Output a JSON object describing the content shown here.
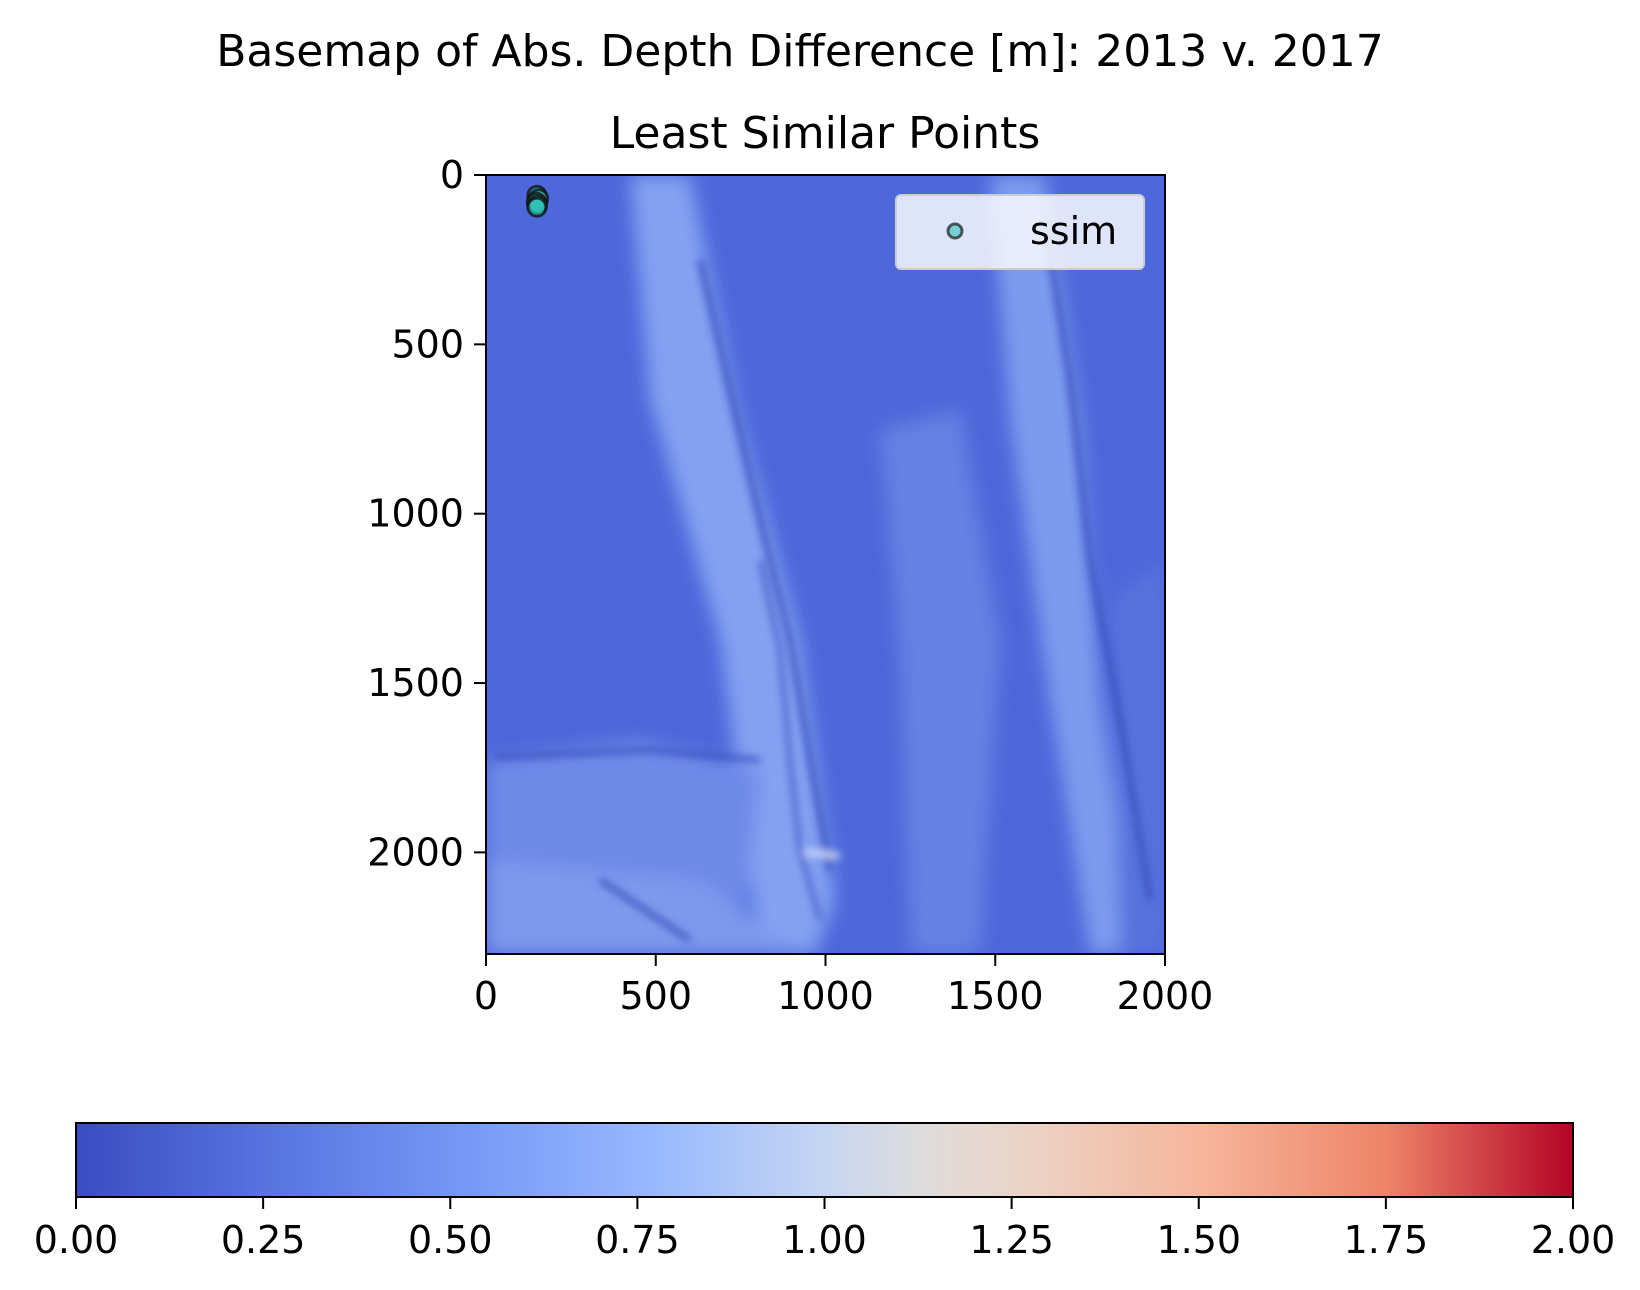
{
  "chart_data": {
    "type": "heatmap",
    "title": "Basemap of Abs. Depth Difference [m]: 2013 v. 2017",
    "subtitle": "Least Similar Points",
    "xlim": [
      0,
      2000
    ],
    "ylim": [
      2300,
      0
    ],
    "x_ticks": [
      "0",
      "500",
      "1000",
      "1500",
      "2000"
    ],
    "y_ticks": [
      "0",
      "500",
      "1000",
      "1500",
      "2000"
    ],
    "x_tick_values": [
      0,
      500,
      1000,
      1500,
      2000
    ],
    "y_tick_values": [
      0,
      500,
      1000,
      1500,
      2000
    ],
    "legend": {
      "placement": "upper right",
      "entries": [
        "ssim"
      ]
    },
    "series": [
      {
        "name": "ssim",
        "color": "#2ec4b6",
        "points": [
          {
            "x": 150,
            "y": 60
          },
          {
            "x": 155,
            "y": 70
          },
          {
            "x": 148,
            "y": 80
          },
          {
            "x": 152,
            "y": 88
          },
          {
            "x": 150,
            "y": 95
          }
        ]
      }
    ],
    "colorbar": {
      "colormap": "coolwarm",
      "range": [
        0,
        2
      ],
      "ticks": [
        "0.00",
        "0.25",
        "0.50",
        "0.75",
        "1.00",
        "1.25",
        "1.50",
        "1.75",
        "2.00"
      ],
      "tick_values": [
        0,
        0.25,
        0.5,
        0.75,
        1.0,
        1.25,
        1.5,
        1.75,
        2.0
      ],
      "colors": [
        "#3b4cc0",
        "#6788ee",
        "#9abbff",
        "#c9d7f0",
        "#dddcdc",
        "#f2cbb7",
        "#f7a889",
        "#e26952",
        "#b40426"
      ]
    },
    "basemap_colors": {
      "base": "#4a66d8",
      "light": "#9fbcff",
      "dark": "#3447b8"
    }
  }
}
